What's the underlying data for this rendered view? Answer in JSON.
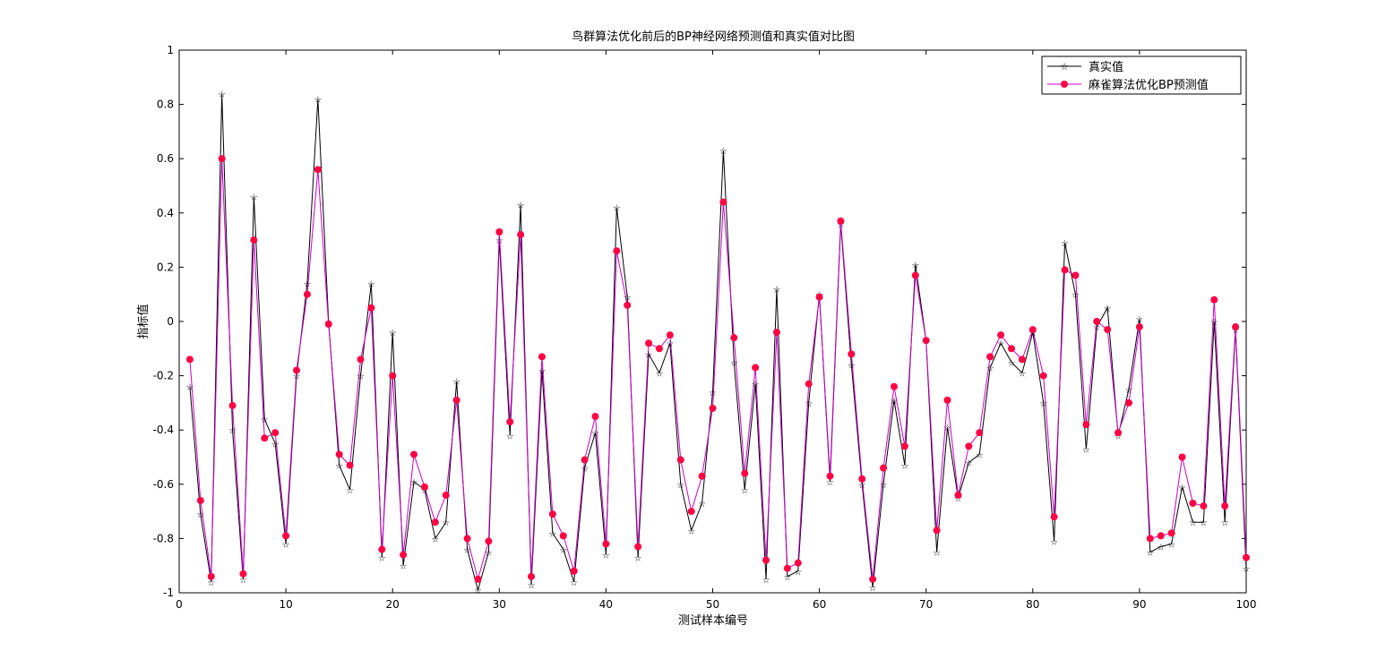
{
  "chart_data": {
    "type": "line",
    "title": "鸟群算法优化前后的BP神经网络预测值和真实值对比图",
    "xlabel": "测试样本编号",
    "ylabel": "指标值",
    "xlim": [
      0,
      100
    ],
    "ylim": [
      -1,
      1
    ],
    "xticks": [
      0,
      10,
      20,
      30,
      40,
      50,
      60,
      70,
      80,
      90,
      100
    ],
    "yticks": [
      -1,
      -0.8,
      -0.6,
      -0.4,
      -0.2,
      0,
      0.2,
      0.4,
      0.6,
      0.8,
      1
    ],
    "xtick_labels": [
      "0",
      "10",
      "20",
      "30",
      "40",
      "50",
      "60",
      "70",
      "80",
      "90",
      "100"
    ],
    "ytick_labels": [
      "-1",
      "-0.8",
      "-0.6",
      "-0.4",
      "-0.2",
      "0",
      "0.2",
      "0.4",
      "0.6",
      "0.8",
      "1"
    ],
    "grid": false,
    "legend_position": "top-right",
    "x": [
      1,
      2,
      3,
      4,
      5,
      6,
      7,
      8,
      9,
      10,
      11,
      12,
      13,
      14,
      15,
      16,
      17,
      18,
      19,
      20,
      21,
      22,
      23,
      24,
      25,
      26,
      27,
      28,
      29,
      30,
      31,
      32,
      33,
      34,
      35,
      36,
      37,
      38,
      39,
      40,
      41,
      42,
      43,
      44,
      45,
      46,
      47,
      48,
      49,
      50,
      51,
      52,
      53,
      54,
      55,
      56,
      57,
      58,
      59,
      60,
      61,
      62,
      63,
      64,
      65,
      66,
      67,
      68,
      69,
      70,
      71,
      72,
      73,
      74,
      75,
      76,
      77,
      78,
      79,
      80,
      81,
      82,
      83,
      84,
      85,
      86,
      87,
      88,
      89,
      90,
      91,
      92,
      93,
      94,
      95,
      96,
      97,
      98,
      99,
      100
    ],
    "series": [
      {
        "name": "真实值",
        "color": "#000000",
        "marker": "star",
        "values": [
          -0.24,
          -0.71,
          -0.96,
          0.84,
          -0.4,
          -0.95,
          0.46,
          -0.36,
          -0.45,
          -0.82,
          -0.2,
          0.14,
          0.82,
          0.0,
          -0.53,
          -0.62,
          -0.2,
          0.14,
          -0.87,
          -0.04,
          -0.9,
          -0.59,
          -0.62,
          -0.8,
          -0.74,
          -0.22,
          -0.84,
          -0.99,
          -0.85,
          0.3,
          -0.42,
          0.43,
          -0.97,
          -0.18,
          -0.78,
          -0.84,
          -0.96,
          -0.54,
          -0.41,
          -0.86,
          0.42,
          0.09,
          -0.87,
          -0.12,
          -0.19,
          -0.08,
          -0.6,
          -0.77,
          -0.67,
          -0.26,
          0.63,
          -0.15,
          -0.62,
          -0.23,
          -0.95,
          0.12,
          -0.94,
          -0.92,
          -0.3,
          0.1,
          -0.59,
          0.36,
          -0.16,
          -0.6,
          -0.98,
          -0.6,
          -0.29,
          -0.53,
          0.21,
          -0.07,
          -0.85,
          -0.39,
          -0.65,
          -0.52,
          -0.49,
          -0.17,
          -0.08,
          -0.15,
          -0.19,
          -0.04,
          -0.3,
          -0.81,
          0.29,
          0.1,
          -0.47,
          -0.02,
          0.05,
          -0.42,
          -0.25,
          0.01,
          -0.85,
          -0.83,
          -0.82,
          -0.61,
          -0.74,
          -0.74,
          0.0,
          -0.74,
          -0.03,
          -0.91
        ]
      },
      {
        "name": "麻雀算法优化BP预测值",
        "color": "#cc00cc",
        "marker": "circle",
        "marker_color": "#ff0044",
        "values": [
          -0.14,
          -0.66,
          -0.94,
          0.6,
          -0.31,
          -0.93,
          0.3,
          -0.43,
          -0.41,
          -0.79,
          -0.18,
          0.1,
          0.56,
          -0.01,
          -0.49,
          -0.53,
          -0.14,
          0.05,
          -0.84,
          -0.2,
          -0.86,
          -0.49,
          -0.61,
          -0.74,
          -0.64,
          -0.29,
          -0.8,
          -0.95,
          -0.81,
          0.33,
          -0.37,
          0.32,
          -0.94,
          -0.13,
          -0.71,
          -0.79,
          -0.92,
          -0.51,
          -0.35,
          -0.82,
          0.26,
          0.06,
          -0.83,
          -0.08,
          -0.1,
          -0.05,
          -0.51,
          -0.7,
          -0.57,
          -0.32,
          0.44,
          -0.06,
          -0.56,
          -0.17,
          -0.88,
          -0.04,
          -0.91,
          -0.89,
          -0.23,
          0.09,
          -0.57,
          0.37,
          -0.12,
          -0.58,
          -0.95,
          -0.54,
          -0.24,
          -0.46,
          0.17,
          -0.07,
          -0.77,
          -0.29,
          -0.64,
          -0.46,
          -0.41,
          -0.13,
          -0.05,
          -0.1,
          -0.14,
          -0.03,
          -0.2,
          -0.72,
          0.19,
          0.17,
          -0.38,
          0.0,
          -0.03,
          -0.41,
          -0.3,
          -0.02,
          -0.8,
          -0.79,
          -0.78,
          -0.5,
          -0.67,
          -0.68,
          0.08,
          -0.68,
          -0.02,
          -0.87
        ]
      }
    ]
  }
}
